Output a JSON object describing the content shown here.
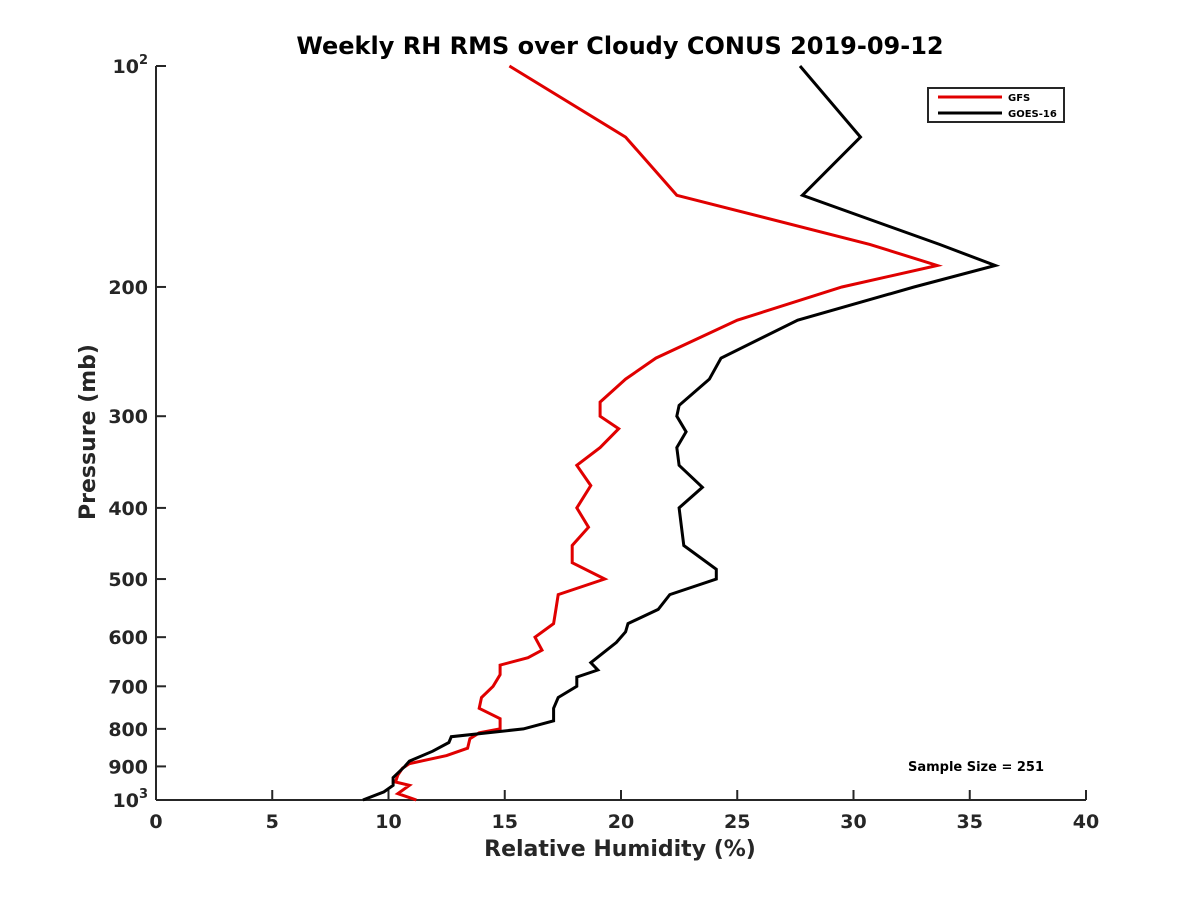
{
  "chart_data": {
    "type": "line",
    "title": "Weekly RH RMS over Cloudy CONUS 2019-09-12",
    "xlabel": "Relative Humidity (%)",
    "ylabel": "Pressure (mb)",
    "xlim": [
      0,
      40
    ],
    "ylim": [
      100,
      1000
    ],
    "y_scale": "log",
    "y_reversed": true,
    "x_ticks": [
      0,
      5,
      10,
      15,
      20,
      25,
      30,
      35,
      40
    ],
    "y_ticks": [
      {
        "value": 100,
        "base": "10",
        "exp": "2"
      },
      {
        "value": 200,
        "label": "200"
      },
      {
        "value": 300,
        "label": "300"
      },
      {
        "value": 400,
        "label": "400"
      },
      {
        "value": 500,
        "label": "500"
      },
      {
        "value": 600,
        "label": "600"
      },
      {
        "value": 700,
        "label": "700"
      },
      {
        "value": 800,
        "label": "800"
      },
      {
        "value": 900,
        "label": "900"
      },
      {
        "value": 1000,
        "base": "10",
        "exp": "3"
      }
    ],
    "legend": {
      "position": "top-right"
    },
    "annotation": "Sample Size = 251",
    "series": [
      {
        "name": "GFS",
        "color": "#e00000",
        "points": [
          [
            15.2,
            100
          ],
          [
            20.2,
            125
          ],
          [
            22.4,
            150
          ],
          [
            30.7,
            175
          ],
          [
            33.6,
            187
          ],
          [
            29.5,
            200
          ],
          [
            25.0,
            222
          ],
          [
            21.5,
            250
          ],
          [
            20.2,
            267
          ],
          [
            19.1,
            287
          ],
          [
            19.1,
            300
          ],
          [
            19.9,
            312
          ],
          [
            19.1,
            331
          ],
          [
            18.1,
            350
          ],
          [
            18.7,
            373
          ],
          [
            18.1,
            400
          ],
          [
            18.6,
            425
          ],
          [
            17.9,
            450
          ],
          [
            17.9,
            475
          ],
          [
            19.3,
            500
          ],
          [
            17.3,
            525
          ],
          [
            17.2,
            550
          ],
          [
            17.1,
            575
          ],
          [
            16.3,
            600
          ],
          [
            16.6,
            625
          ],
          [
            16.0,
            640
          ],
          [
            14.8,
            655
          ],
          [
            14.8,
            675
          ],
          [
            14.5,
            700
          ],
          [
            14.0,
            725
          ],
          [
            13.9,
            750
          ],
          [
            14.8,
            775
          ],
          [
            14.8,
            800
          ],
          [
            13.9,
            810
          ],
          [
            13.5,
            825
          ],
          [
            13.4,
            850
          ],
          [
            12.5,
            870
          ],
          [
            10.9,
            892
          ],
          [
            10.6,
            905
          ],
          [
            10.4,
            925
          ],
          [
            10.3,
            945
          ],
          [
            10.9,
            955
          ],
          [
            10.4,
            980
          ],
          [
            11.2,
            1000
          ]
        ]
      },
      {
        "name": "GOES-16",
        "color": "#000000",
        "points": [
          [
            27.7,
            100
          ],
          [
            30.3,
            125
          ],
          [
            27.8,
            150
          ],
          [
            33.7,
            175
          ],
          [
            36.1,
            187
          ],
          [
            32.6,
            200
          ],
          [
            27.6,
            222
          ],
          [
            24.3,
            250
          ],
          [
            23.8,
            267
          ],
          [
            22.5,
            290
          ],
          [
            22.4,
            300
          ],
          [
            22.8,
            315
          ],
          [
            22.4,
            331
          ],
          [
            22.5,
            350
          ],
          [
            23.5,
            375
          ],
          [
            22.5,
            400
          ],
          [
            22.6,
            425
          ],
          [
            22.7,
            450
          ],
          [
            24.1,
            485
          ],
          [
            24.1,
            500
          ],
          [
            22.1,
            525
          ],
          [
            21.6,
            550
          ],
          [
            20.3,
            575
          ],
          [
            20.2,
            590
          ],
          [
            19.8,
            610
          ],
          [
            18.7,
            650
          ],
          [
            19.0,
            665
          ],
          [
            18.1,
            680
          ],
          [
            18.1,
            700
          ],
          [
            17.3,
            725
          ],
          [
            17.1,
            750
          ],
          [
            17.1,
            780
          ],
          [
            15.8,
            800
          ],
          [
            12.7,
            820
          ],
          [
            12.6,
            835
          ],
          [
            11.9,
            858
          ],
          [
            10.9,
            885
          ],
          [
            10.7,
            900
          ],
          [
            10.2,
            932
          ],
          [
            10.2,
            955
          ],
          [
            9.8,
            975
          ],
          [
            8.9,
            1000
          ]
        ]
      }
    ]
  }
}
